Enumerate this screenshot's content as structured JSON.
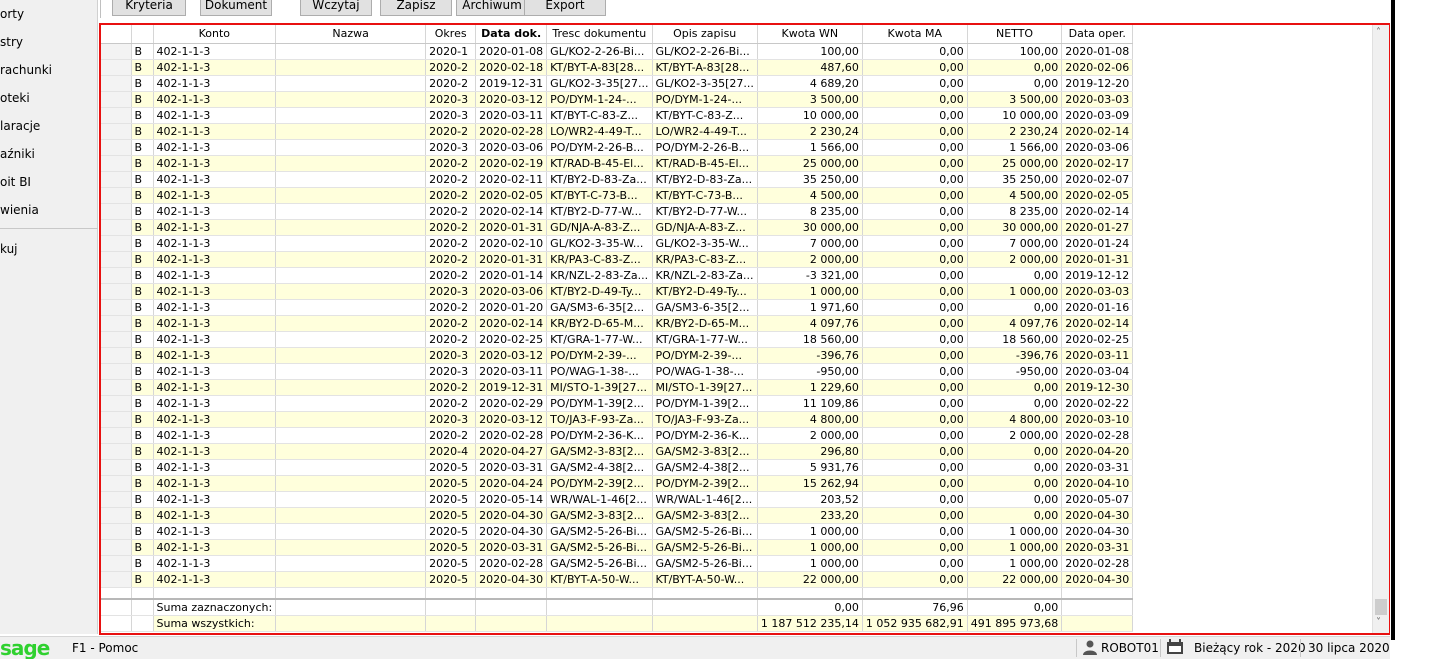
{
  "sidebar": {
    "items": [
      {
        "label": "orty"
      },
      {
        "label": "stry"
      },
      {
        "label": "rachunki"
      },
      {
        "label": "oteki"
      },
      {
        "label": "laracje"
      },
      {
        "label": "aźniki"
      },
      {
        "label": "oit BI"
      },
      {
        "label": "wienia"
      },
      {
        "label": "kuj"
      }
    ]
  },
  "toolbar": {
    "buttons": [
      {
        "label": "Kryteria"
      },
      {
        "label": "Dokument"
      },
      {
        "label": "Wczytaj"
      },
      {
        "label": "Zapisz"
      },
      {
        "label": "Archiwum"
      },
      {
        "label": "Export"
      }
    ]
  },
  "grid": {
    "columns": [
      "",
      "",
      "Konto",
      "Nazwa",
      "Okres",
      "Data dok.",
      "Tresc dokumentu",
      "Opis zapisu",
      "Kwota WN",
      "Kwota MA",
      "NETTO",
      "Data oper."
    ],
    "rows": [
      [
        "B",
        "402-1-1-3",
        "",
        "2020-1",
        "2020-01-08",
        "GL/KO2-2-26-Bi...",
        "GL/KO2-2-26-Bi...",
        "100,00",
        "0,00",
        "100,00",
        "2020-01-08"
      ],
      [
        "B",
        "402-1-1-3",
        "",
        "2020-2",
        "2020-02-18",
        "KT/BYT-A-83[28...",
        "KT/BYT-A-83[28...",
        "487,60",
        "0,00",
        "0,00",
        "2020-02-06"
      ],
      [
        "B",
        "402-1-1-3",
        "",
        "2020-2",
        "2019-12-31",
        "GL/KO2-3-35[27...",
        "GL/KO2-3-35[27...",
        "4 689,20",
        "0,00",
        "0,00",
        "2019-12-20"
      ],
      [
        "B",
        "402-1-1-3",
        "",
        "2020-3",
        "2020-03-12",
        "PO/DYM-1-24-...",
        "PO/DYM-1-24-...",
        "3 500,00",
        "0,00",
        "3 500,00",
        "2020-03-03"
      ],
      [
        "B",
        "402-1-1-3",
        "",
        "2020-3",
        "2020-03-11",
        "KT/BYT-C-83-Z...",
        "KT/BYT-C-83-Z...",
        "10 000,00",
        "0,00",
        "10 000,00",
        "2020-03-09"
      ],
      [
        "B",
        "402-1-1-3",
        "",
        "2020-2",
        "2020-02-28",
        "LO/WR2-4-49-T...",
        "LO/WR2-4-49-T...",
        "2 230,24",
        "0,00",
        "2 230,24",
        "2020-02-14"
      ],
      [
        "B",
        "402-1-1-3",
        "",
        "2020-3",
        "2020-03-06",
        "PO/DYM-2-26-B...",
        "PO/DYM-2-26-B...",
        "1 566,00",
        "0,00",
        "1 566,00",
        "2020-03-06"
      ],
      [
        "B",
        "402-1-1-3",
        "",
        "2020-2",
        "2020-02-19",
        "KT/RAD-B-45-El...",
        "KT/RAD-B-45-El...",
        "25 000,00",
        "0,00",
        "25 000,00",
        "2020-02-17"
      ],
      [
        "B",
        "402-1-1-3",
        "",
        "2020-2",
        "2020-02-11",
        "KT/BY2-D-83-Za...",
        "KT/BY2-D-83-Za...",
        "35 250,00",
        "0,00",
        "35 250,00",
        "2020-02-07"
      ],
      [
        "B",
        "402-1-1-3",
        "",
        "2020-2",
        "2020-02-05",
        "KT/BYT-C-73-B...",
        "KT/BYT-C-73-B...",
        "4 500,00",
        "0,00",
        "4 500,00",
        "2020-02-05"
      ],
      [
        "B",
        "402-1-1-3",
        "",
        "2020-2",
        "2020-02-14",
        "KT/BY2-D-77-W...",
        "KT/BY2-D-77-W...",
        "8 235,00",
        "0,00",
        "8 235,00",
        "2020-02-14"
      ],
      [
        "B",
        "402-1-1-3",
        "",
        "2020-2",
        "2020-01-31",
        "GD/NJA-A-83-Z...",
        "GD/NJA-A-83-Z...",
        "30 000,00",
        "0,00",
        "30 000,00",
        "2020-01-27"
      ],
      [
        "B",
        "402-1-1-3",
        "",
        "2020-2",
        "2020-02-10",
        "GL/KO2-3-35-W...",
        "GL/KO2-3-35-W...",
        "7 000,00",
        "0,00",
        "7 000,00",
        "2020-01-24"
      ],
      [
        "B",
        "402-1-1-3",
        "",
        "2020-2",
        "2020-01-31",
        "KR/PA3-C-83-Z...",
        "KR/PA3-C-83-Z...",
        "2 000,00",
        "0,00",
        "2 000,00",
        "2020-01-31"
      ],
      [
        "B",
        "402-1-1-3",
        "",
        "2020-2",
        "2020-01-14",
        "KR/NZL-2-83-Za...",
        "KR/NZL-2-83-Za...",
        "-3 321,00",
        "0,00",
        "0,00",
        "2019-12-12"
      ],
      [
        "B",
        "402-1-1-3",
        "",
        "2020-3",
        "2020-03-06",
        "KT/BY2-D-49-Ty...",
        "KT/BY2-D-49-Ty...",
        "1 000,00",
        "0,00",
        "1 000,00",
        "2020-03-03"
      ],
      [
        "B",
        "402-1-1-3",
        "",
        "2020-2",
        "2020-01-20",
        "GA/SM3-6-35[2...",
        "GA/SM3-6-35[2...",
        "1 971,60",
        "0,00",
        "0,00",
        "2020-01-16"
      ],
      [
        "B",
        "402-1-1-3",
        "",
        "2020-2",
        "2020-02-14",
        "KR/BY2-D-65-M...",
        "KR/BY2-D-65-M...",
        "4 097,76",
        "0,00",
        "4 097,76",
        "2020-02-14"
      ],
      [
        "B",
        "402-1-1-3",
        "",
        "2020-2",
        "2020-02-25",
        "KT/GRA-1-77-W...",
        "KT/GRA-1-77-W...",
        "18 560,00",
        "0,00",
        "18 560,00",
        "2020-02-25"
      ],
      [
        "B",
        "402-1-1-3",
        "",
        "2020-3",
        "2020-03-12",
        "PO/DYM-2-39-...",
        "PO/DYM-2-39-...",
        "-396,76",
        "0,00",
        "-396,76",
        "2020-03-11"
      ],
      [
        "B",
        "402-1-1-3",
        "",
        "2020-3",
        "2020-03-11",
        "PO/WAG-1-38-...",
        "PO/WAG-1-38-...",
        "-950,00",
        "0,00",
        "-950,00",
        "2020-03-04"
      ],
      [
        "B",
        "402-1-1-3",
        "",
        "2020-2",
        "2019-12-31",
        "MI/STO-1-39[27...",
        "MI/STO-1-39[27...",
        "1 229,60",
        "0,00",
        "0,00",
        "2019-12-30"
      ],
      [
        "B",
        "402-1-1-3",
        "",
        "2020-2",
        "2020-02-29",
        "PO/DYM-1-39[2...",
        "PO/DYM-1-39[2...",
        "11 109,86",
        "0,00",
        "0,00",
        "2020-02-22"
      ],
      [
        "B",
        "402-1-1-3",
        "",
        "2020-3",
        "2020-03-12",
        "TO/JA3-F-93-Za...",
        "TO/JA3-F-93-Za...",
        "4 800,00",
        "0,00",
        "4 800,00",
        "2020-03-10"
      ],
      [
        "B",
        "402-1-1-3",
        "",
        "2020-2",
        "2020-02-28",
        "PO/DYM-2-36-K...",
        "PO/DYM-2-36-K...",
        "2 000,00",
        "0,00",
        "2 000,00",
        "2020-02-28"
      ],
      [
        "B",
        "402-1-1-3",
        "",
        "2020-4",
        "2020-04-27",
        "GA/SM2-3-83[2...",
        "GA/SM2-3-83[2...",
        "296,80",
        "0,00",
        "0,00",
        "2020-04-20"
      ],
      [
        "B",
        "402-1-1-3",
        "",
        "2020-5",
        "2020-03-31",
        "GA/SM2-4-38[2...",
        "GA/SM2-4-38[2...",
        "5 931,76",
        "0,00",
        "0,00",
        "2020-03-31"
      ],
      [
        "B",
        "402-1-1-3",
        "",
        "2020-5",
        "2020-04-24",
        "PO/DYM-2-39[2...",
        "PO/DYM-2-39[2...",
        "15 262,94",
        "0,00",
        "0,00",
        "2020-04-10"
      ],
      [
        "B",
        "402-1-1-3",
        "",
        "2020-5",
        "2020-05-14",
        "WR/WAL-1-46[2...",
        "WR/WAL-1-46[2...",
        "203,52",
        "0,00",
        "0,00",
        "2020-05-07"
      ],
      [
        "B",
        "402-1-1-3",
        "",
        "2020-5",
        "2020-04-30",
        "GA/SM2-3-83[2...",
        "GA/SM2-3-83[2...",
        "233,20",
        "0,00",
        "0,00",
        "2020-04-30"
      ],
      [
        "B",
        "402-1-1-3",
        "",
        "2020-5",
        "2020-04-30",
        "GA/SM2-5-26-Bi...",
        "GA/SM2-5-26-Bi...",
        "1 000,00",
        "0,00",
        "1 000,00",
        "2020-04-30"
      ],
      [
        "B",
        "402-1-1-3",
        "",
        "2020-5",
        "2020-03-31",
        "GA/SM2-5-26-Bi...",
        "GA/SM2-5-26-Bi...",
        "1 000,00",
        "0,00",
        "1 000,00",
        "2020-03-31"
      ],
      [
        "B",
        "402-1-1-3",
        "",
        "2020-5",
        "2020-02-28",
        "GA/SM2-5-26-Bi...",
        "GA/SM2-5-26-Bi...",
        "1 000,00",
        "0,00",
        "1 000,00",
        "2020-02-28"
      ],
      [
        "B",
        "402-1-1-3",
        "",
        "2020-5",
        "2020-04-30",
        "KT/BYT-A-50-W...",
        "KT/BYT-A-50-W...",
        "22 000,00",
        "0,00",
        "22 000,00",
        "2020-04-30"
      ]
    ],
    "summary": [
      {
        "label": "Suma zaznaczonych:",
        "wn": "0,00",
        "ma": "76,96",
        "netto": "0,00"
      },
      {
        "label": "Suma wszystkich:",
        "wn": "1 187 512 235,14",
        "ma": "1 052 935 682,91",
        "netto": "491 895 973,68"
      }
    ]
  },
  "statusbar": {
    "logo": "sage",
    "help": "F1 - Pomoc",
    "user": "ROBOT01",
    "year": "Bieżący rok - 2020",
    "date": "30 lipca 2020"
  }
}
